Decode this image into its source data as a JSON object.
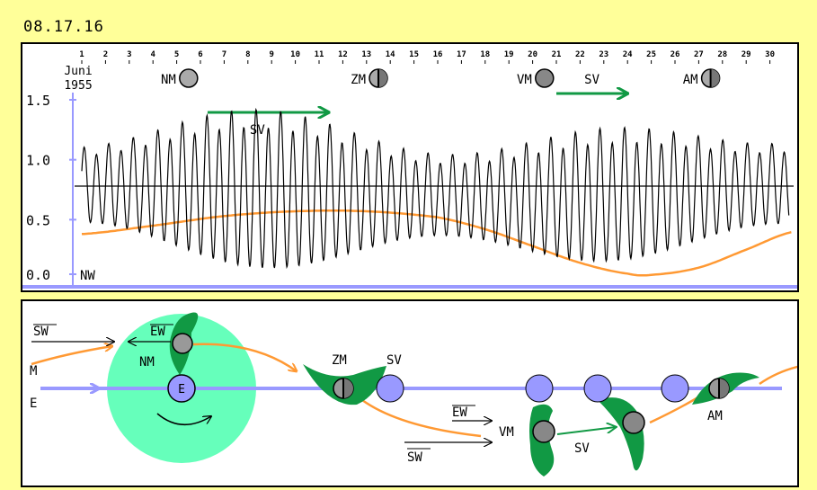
{
  "date_code": "08.17.16",
  "chart_data": {
    "type": "line",
    "month_label": [
      "Juni",
      "1955"
    ],
    "days": [
      "1",
      "2",
      "3",
      "4",
      "5",
      "6",
      "7",
      "8",
      "9",
      "10",
      "11",
      "12",
      "13",
      "14",
      "15",
      "16",
      "17",
      "18",
      "19",
      "20",
      "21",
      "22",
      "23",
      "24",
      "25",
      "26",
      "27",
      "28",
      "29",
      "30"
    ],
    "y_ticks": [
      "0.0",
      "0.5",
      "1.0",
      "1.5"
    ],
    "ylim": [
      0,
      1.5
    ],
    "xlim": [
      1,
      31
    ],
    "reference_line": 0.78,
    "baseline_label": "NW",
    "moon_phases": [
      {
        "label": "NM",
        "day": 5.5,
        "phase": "new"
      },
      {
        "label": "ZM",
        "day": 13.5,
        "phase": "half"
      },
      {
        "label": "VM",
        "day": 20.5,
        "phase": "full"
      },
      {
        "label": "AM",
        "day": 27.5,
        "phase": "half"
      }
    ],
    "spring_tide_label": "SV",
    "spring_tide_arrows": [
      {
        "label_day": 8.4,
        "from": 6.3,
        "to": 11.4
      },
      {
        "label_day": 22.5,
        "from": 21.0,
        "to": 24.0
      }
    ],
    "tide_envelope": {
      "low_base": 0.42,
      "low_amp": 0.33,
      "high_base": 1.05,
      "high_amp": 0.22,
      "mid_low": 0.2
    },
    "orange_curve": [
      [
        1,
        0.38
      ],
      [
        4,
        0.45
      ],
      [
        7,
        0.53
      ],
      [
        10,
        0.57
      ],
      [
        13,
        0.57
      ],
      [
        16,
        0.52
      ],
      [
        18,
        0.42
      ],
      [
        20,
        0.28
      ],
      [
        22,
        0.14
      ],
      [
        24,
        0.05
      ],
      [
        25,
        0.04
      ],
      [
        27,
        0.1
      ],
      [
        29,
        0.25
      ],
      [
        31,
        0.4
      ]
    ]
  },
  "diagram": {
    "labels": {
      "sw": "SW",
      "ew": "EW",
      "m": "M",
      "e": "E",
      "nm": "NM",
      "earth": "E",
      "zm": "ZM",
      "sv": "SV",
      "vm": "VM",
      "am": "AM"
    },
    "colors": {
      "earth_orbit": "#9999ff",
      "moon_path": "#ff9933",
      "water_circle": "#66ffbb",
      "tidal_bulge": "#119944",
      "moon": "#999999",
      "spring_arrow": "#119944"
    }
  }
}
